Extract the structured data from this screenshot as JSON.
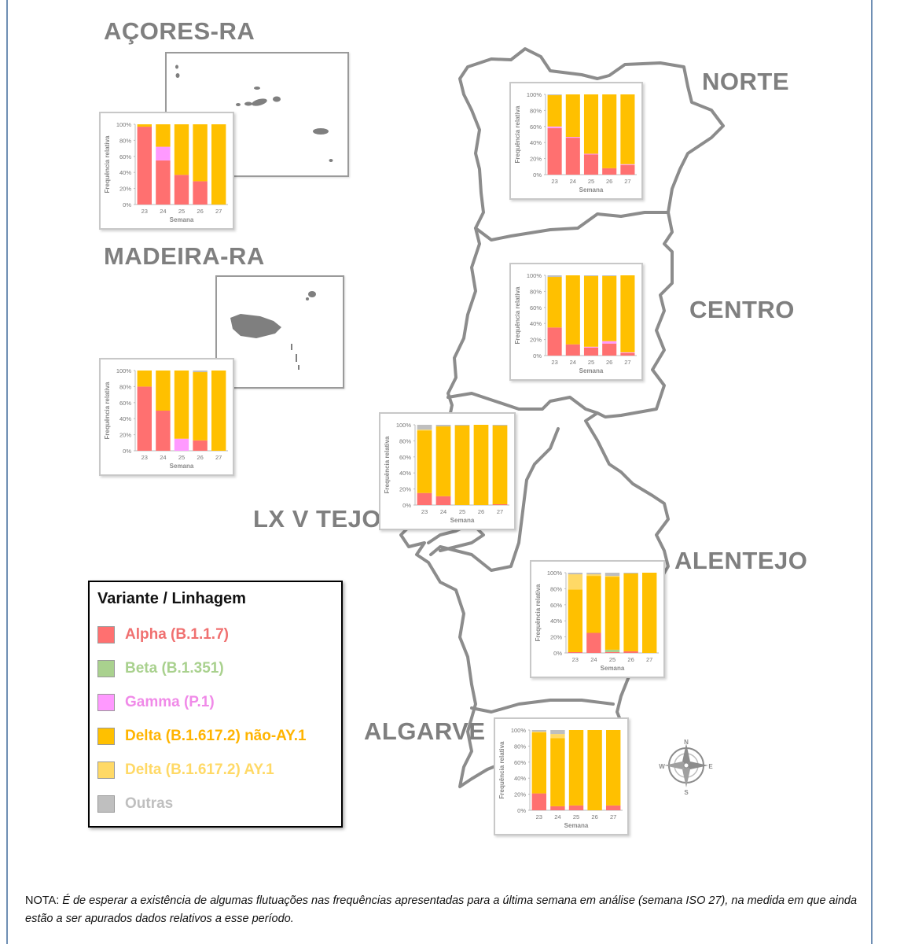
{
  "regions": {
    "acores": "AÇORES-RA",
    "madeira": "MADEIRA-RA",
    "norte": "NORTE",
    "centro": "CENTRO",
    "lvt": "LX V TEJO",
    "alentejo": "ALENTEJO",
    "algarve": "ALGARVE"
  },
  "compass": {
    "n": "N",
    "s": "S",
    "e": "E",
    "w": "W"
  },
  "legend": {
    "title": "Variante / Linhagem",
    "items": [
      {
        "key": "alpha",
        "label": "Alpha (B.1.1.7)",
        "color": "#ff7070",
        "text_color": "#f07070"
      },
      {
        "key": "beta",
        "label": "Beta (B.1.351)",
        "color": "#a9d18e",
        "text_color": "#a9d18e"
      },
      {
        "key": "gamma",
        "label": "Gamma (P.1)",
        "color": "#ff99ff",
        "text_color": "#f08ae8"
      },
      {
        "key": "delta",
        "label": "Delta (B.1.617.2) não-AY.1",
        "color": "#ffc000",
        "text_color": "#ffb400"
      },
      {
        "key": "ay1",
        "label": "Delta (B.1.617.2) AY.1",
        "color": "#ffd966",
        "text_color": "#ffd966"
      },
      {
        "key": "outras",
        "label": "Outras",
        "color": "#bfbfbf",
        "text_color": "#bfbfbf"
      }
    ]
  },
  "note": {
    "prefix": "NOTA:",
    "text": "É de esperar a existência de algumas flutuações nas frequências apresentadas para a última semana em análise (semana ISO 27), na medida em que ainda estão a ser apurados dados relativos a esse período."
  },
  "chart_data": [
    {
      "type": "bar",
      "stacked": true,
      "region": "AÇORES-RA",
      "categories": [
        "23",
        "24",
        "25",
        "26",
        "27"
      ],
      "xlabel": "Semana",
      "ylabel": "Frequência relativa",
      "yticks": [
        "0%",
        "20%",
        "40%",
        "60%",
        "80%",
        "100%"
      ],
      "ylim": [
        0,
        100
      ],
      "series": [
        {
          "key": "alpha",
          "values": [
            97,
            55,
            37,
            29,
            0
          ]
        },
        {
          "key": "beta",
          "values": [
            0,
            0,
            0,
            0,
            0
          ]
        },
        {
          "key": "gamma",
          "values": [
            0,
            17,
            0,
            0,
            0
          ]
        },
        {
          "key": "delta",
          "values": [
            3,
            28,
            63,
            71,
            100
          ]
        },
        {
          "key": "ay1",
          "values": [
            0,
            0,
            0,
            0,
            0
          ]
        },
        {
          "key": "outras",
          "values": [
            0,
            0,
            0,
            0,
            0
          ]
        }
      ]
    },
    {
      "type": "bar",
      "stacked": true,
      "region": "MADEIRA-RA",
      "categories": [
        "23",
        "24",
        "25",
        "26",
        "27"
      ],
      "xlabel": "Semana",
      "ylabel": "Frequência relativa",
      "yticks": [
        "0%",
        "20%",
        "40%",
        "60%",
        "80%",
        "100%"
      ],
      "ylim": [
        0,
        100
      ],
      "series": [
        {
          "key": "alpha",
          "values": [
            80,
            50,
            0,
            13,
            0
          ]
        },
        {
          "key": "beta",
          "values": [
            0,
            0,
            0,
            0,
            0
          ]
        },
        {
          "key": "gamma",
          "values": [
            0,
            0,
            15,
            0,
            0
          ]
        },
        {
          "key": "delta",
          "values": [
            20,
            50,
            85,
            85,
            100
          ]
        },
        {
          "key": "ay1",
          "values": [
            0,
            0,
            0,
            0,
            0
          ]
        },
        {
          "key": "outras",
          "values": [
            0,
            0,
            0,
            2,
            0
          ]
        }
      ]
    },
    {
      "type": "bar",
      "stacked": true,
      "region": "NORTE",
      "categories": [
        "23",
        "24",
        "25",
        "26",
        "27"
      ],
      "xlabel": "Semana",
      "ylabel": "Frequência relativa",
      "yticks": [
        "0%",
        "20%",
        "40%",
        "60%",
        "80%",
        "100%"
      ],
      "ylim": [
        0,
        100
      ],
      "series": [
        {
          "key": "alpha",
          "values": [
            58,
            46,
            25,
            8,
            12
          ]
        },
        {
          "key": "beta",
          "values": [
            0,
            0,
            0,
            0,
            0
          ]
        },
        {
          "key": "gamma",
          "values": [
            2,
            1,
            1,
            0,
            1
          ]
        },
        {
          "key": "delta",
          "values": [
            39,
            53,
            74,
            92,
            87
          ]
        },
        {
          "key": "ay1",
          "values": [
            0,
            0,
            0,
            0,
            0
          ]
        },
        {
          "key": "outras",
          "values": [
            1,
            0,
            0,
            0,
            0
          ]
        }
      ]
    },
    {
      "type": "bar",
      "stacked": true,
      "region": "CENTRO",
      "categories": [
        "23",
        "24",
        "25",
        "26",
        "27"
      ],
      "xlabel": "Semana",
      "ylabel": "Frequência relativa",
      "yticks": [
        "0%",
        "20%",
        "40%",
        "60%",
        "80%",
        "100%"
      ],
      "ylim": [
        0,
        100
      ],
      "series": [
        {
          "key": "alpha",
          "values": [
            35,
            14,
            10,
            15,
            3
          ]
        },
        {
          "key": "beta",
          "values": [
            0,
            0,
            0,
            0,
            0
          ]
        },
        {
          "key": "gamma",
          "values": [
            0,
            0,
            1,
            3,
            1
          ]
        },
        {
          "key": "delta",
          "values": [
            63,
            86,
            88,
            81,
            96
          ]
        },
        {
          "key": "ay1",
          "values": [
            0,
            0,
            0,
            0,
            0
          ]
        },
        {
          "key": "outras",
          "values": [
            2,
            0,
            1,
            1,
            0
          ]
        }
      ]
    },
    {
      "type": "bar",
      "stacked": true,
      "region": "LX V TEJO",
      "categories": [
        "23",
        "24",
        "25",
        "26",
        "27"
      ],
      "xlabel": "Semana",
      "ylabel": "Frequência relativa",
      "yticks": [
        "0%",
        "20%",
        "40%",
        "60%",
        "80%",
        "100%"
      ],
      "ylim": [
        0,
        100
      ],
      "series": [
        {
          "key": "alpha",
          "values": [
            15,
            11,
            0,
            0,
            1
          ]
        },
        {
          "key": "beta",
          "values": [
            0,
            0,
            0,
            0,
            0
          ]
        },
        {
          "key": "gamma",
          "values": [
            0,
            0,
            0,
            0,
            0
          ]
        },
        {
          "key": "delta",
          "values": [
            78,
            87,
            99,
            100,
            98
          ]
        },
        {
          "key": "ay1",
          "values": [
            1,
            0,
            0,
            0,
            0
          ]
        },
        {
          "key": "outras",
          "values": [
            6,
            2,
            1,
            0,
            1
          ]
        }
      ]
    },
    {
      "type": "bar",
      "stacked": true,
      "region": "ALENTEJO",
      "categories": [
        "23",
        "24",
        "25",
        "26",
        "27"
      ],
      "xlabel": "Semana",
      "ylabel": "Frequência relativa",
      "yticks": [
        "0%",
        "20%",
        "40%",
        "60%",
        "80%",
        "100%"
      ],
      "ylim": [
        0,
        100
      ],
      "series": [
        {
          "key": "alpha",
          "values": [
            1,
            25,
            1,
            2,
            0
          ]
        },
        {
          "key": "beta",
          "values": [
            0,
            0,
            3,
            0,
            0
          ]
        },
        {
          "key": "gamma",
          "values": [
            0,
            0,
            0,
            0,
            0
          ]
        },
        {
          "key": "delta",
          "values": [
            78,
            71,
            91,
            97,
            100
          ]
        },
        {
          "key": "ay1",
          "values": [
            19,
            2,
            1,
            0,
            0
          ]
        },
        {
          "key": "outras",
          "values": [
            2,
            2,
            4,
            1,
            0
          ]
        }
      ]
    },
    {
      "type": "bar",
      "stacked": true,
      "region": "ALGARVE",
      "categories": [
        "23",
        "24",
        "25",
        "26",
        "27"
      ],
      "xlabel": "Semana",
      "ylabel": "Frequência relativa",
      "yticks": [
        "0%",
        "20%",
        "40%",
        "60%",
        "80%",
        "100%"
      ],
      "ylim": [
        0,
        100
      ],
      "series": [
        {
          "key": "alpha",
          "values": [
            21,
            5,
            6,
            0,
            6
          ]
        },
        {
          "key": "beta",
          "values": [
            0,
            0,
            0,
            0,
            0
          ]
        },
        {
          "key": "gamma",
          "values": [
            0,
            0,
            0,
            0,
            0
          ]
        },
        {
          "key": "delta",
          "values": [
            76,
            85,
            94,
            100,
            94
          ]
        },
        {
          "key": "ay1",
          "values": [
            1,
            5,
            0,
            0,
            0
          ]
        },
        {
          "key": "outras",
          "values": [
            2,
            5,
            0,
            0,
            0
          ]
        }
      ]
    }
  ]
}
